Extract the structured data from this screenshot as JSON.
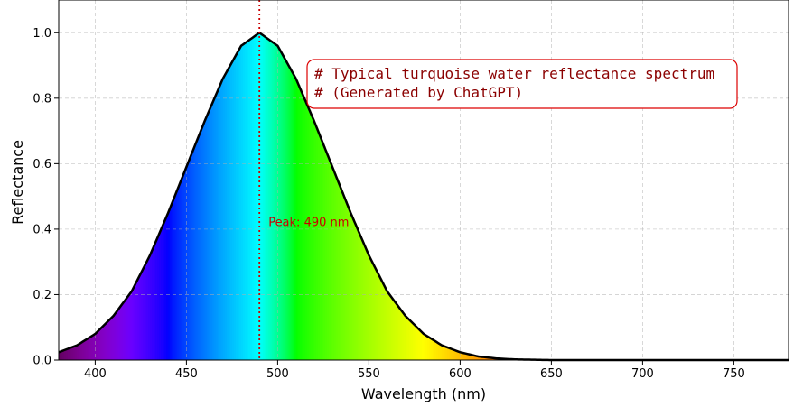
{
  "chart_data": {
    "type": "area",
    "xlabel": "Wavelength (nm)",
    "ylabel": "Reflectance",
    "xlim": [
      380,
      780
    ],
    "ylim": [
      0,
      1.1
    ],
    "x_ticks": [
      400,
      450,
      500,
      550,
      600,
      650,
      700,
      750
    ],
    "y_ticks": [
      0.0,
      0.2,
      0.4,
      0.6,
      0.8,
      1.0
    ],
    "grid": true,
    "grid_style": "dashed",
    "fill": "visible-spectrum color gradient under curve",
    "series": [
      {
        "x": [
          380,
          390,
          400,
          410,
          420,
          430,
          440,
          450,
          460,
          470,
          480,
          490,
          500,
          510,
          520,
          530,
          540,
          550,
          560,
          570,
          580,
          590,
          600,
          610,
          620,
          630,
          640,
          650,
          660,
          680,
          700,
          720,
          740,
          760,
          780
        ],
        "y": [
          0.024,
          0.045,
          0.08,
          0.135,
          0.21,
          0.32,
          0.45,
          0.59,
          0.73,
          0.86,
          0.96,
          1.0,
          0.96,
          0.86,
          0.73,
          0.59,
          0.45,
          0.32,
          0.21,
          0.135,
          0.08,
          0.045,
          0.024,
          0.011,
          0.005,
          0.002,
          0.001,
          0.0,
          0.0,
          0.0,
          0.0,
          0.0,
          0.0,
          0.0,
          0.0
        ],
        "color": "#000000"
      }
    ],
    "peak_line": {
      "x": 490,
      "color": "#cc0000",
      "label": "Peak: 490 nm"
    },
    "annotation": {
      "lines": [
        "# Typical turquoise water reflectance spectrum",
        "# (Generated by ChatGPT)"
      ],
      "text_color": "#8b0000",
      "border_color": "#dd0000"
    }
  }
}
